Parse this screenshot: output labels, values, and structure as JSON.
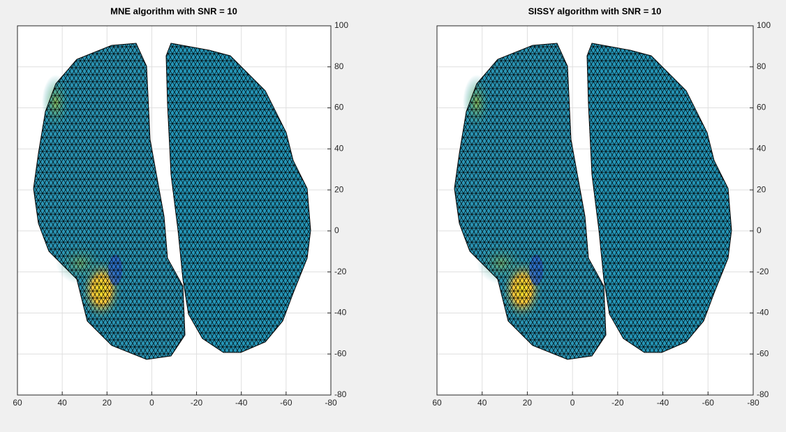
{
  "chart_data": [
    {
      "type": "surface",
      "title": "MNE algorithm with SNR = 10",
      "xlim": [
        60,
        -80
      ],
      "ylim": [
        -80,
        100
      ],
      "xticks": [
        60,
        40,
        20,
        0,
        -20,
        -40,
        -60,
        -80
      ],
      "yticks": [
        100,
        80,
        60,
        40,
        20,
        0,
        -20,
        -40,
        -60,
        -80
      ],
      "grid": true
    },
    {
      "type": "surface",
      "title": "SISSY algorithm with SNR = 10",
      "xlim": [
        60,
        -80
      ],
      "ylim": [
        -80,
        100
      ],
      "xticks": [
        60,
        40,
        20,
        0,
        -20,
        -40,
        -60,
        -80
      ],
      "yticks": [
        100,
        80,
        60,
        40,
        20,
        0,
        -20,
        -40,
        -60,
        -80
      ],
      "grid": true
    }
  ]
}
